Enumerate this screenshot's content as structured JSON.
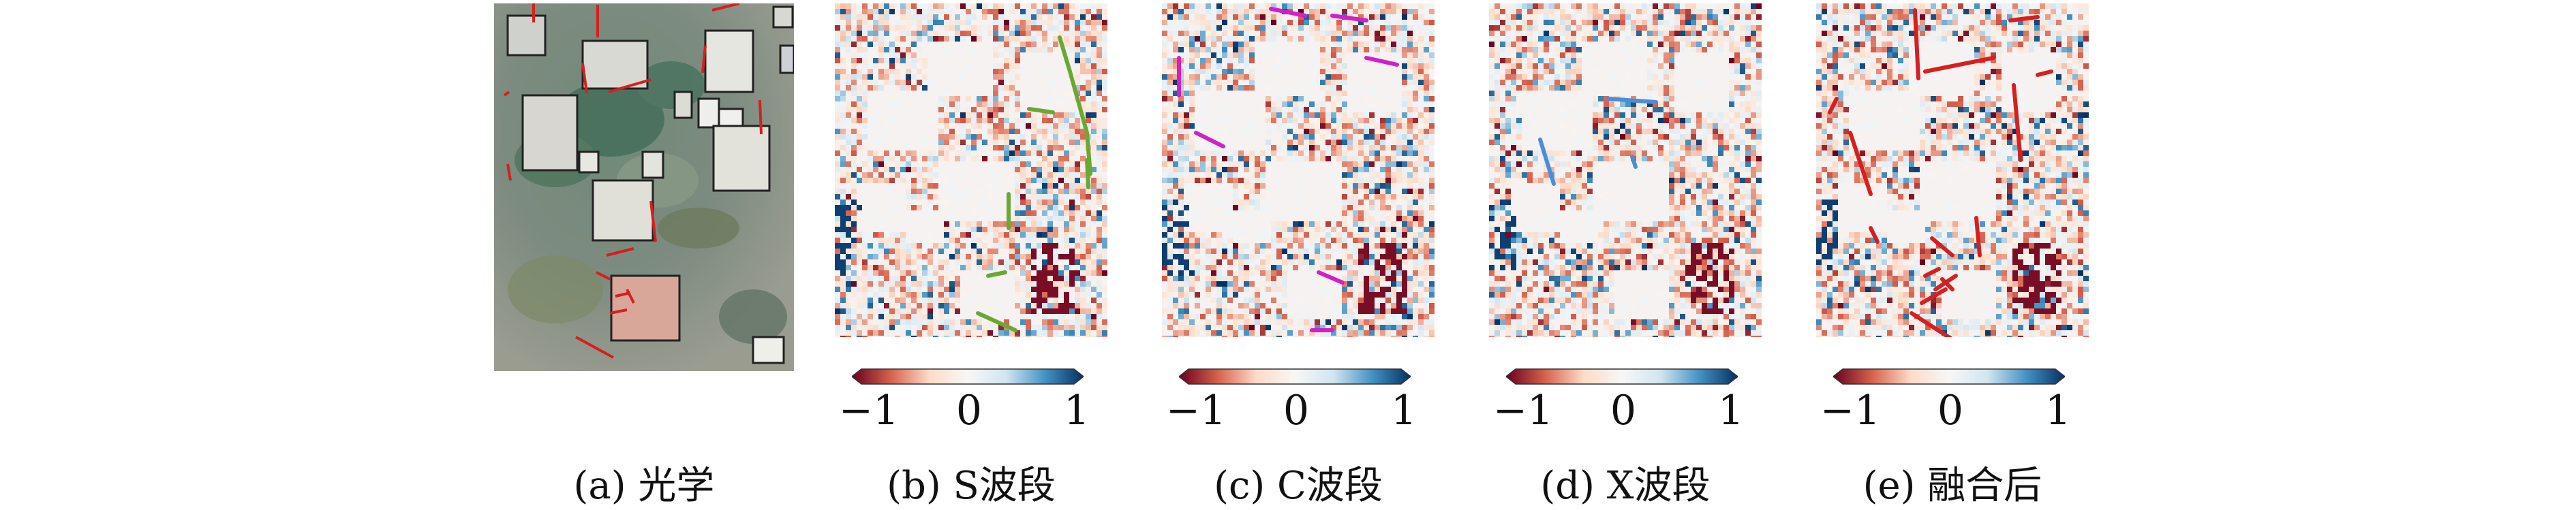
{
  "figure": {
    "panels": [
      {
        "id": "a",
        "caption": "(a) 光学",
        "kind": "optical",
        "line_color": "#d42020"
      },
      {
        "id": "b",
        "caption": "(b) S波段",
        "kind": "map",
        "line_color": "#6aa832"
      },
      {
        "id": "c",
        "caption": "(c) C波段",
        "kind": "map",
        "line_color": "#d020c8"
      },
      {
        "id": "d",
        "caption": "(d) X波段",
        "kind": "map",
        "line_color": "#4a8ed8"
      },
      {
        "id": "e",
        "caption": "(e) 融合后",
        "kind": "map",
        "line_color": "#d42020"
      }
    ],
    "colorbar": {
      "min_label": "−1",
      "mid_label": "0",
      "max_label": "1",
      "colors": [
        "#67001f",
        "#d6604d",
        "#fddbc7",
        "#f7f7f7",
        "#d1e5f0",
        "#4393c3",
        "#053061"
      ]
    }
  }
}
